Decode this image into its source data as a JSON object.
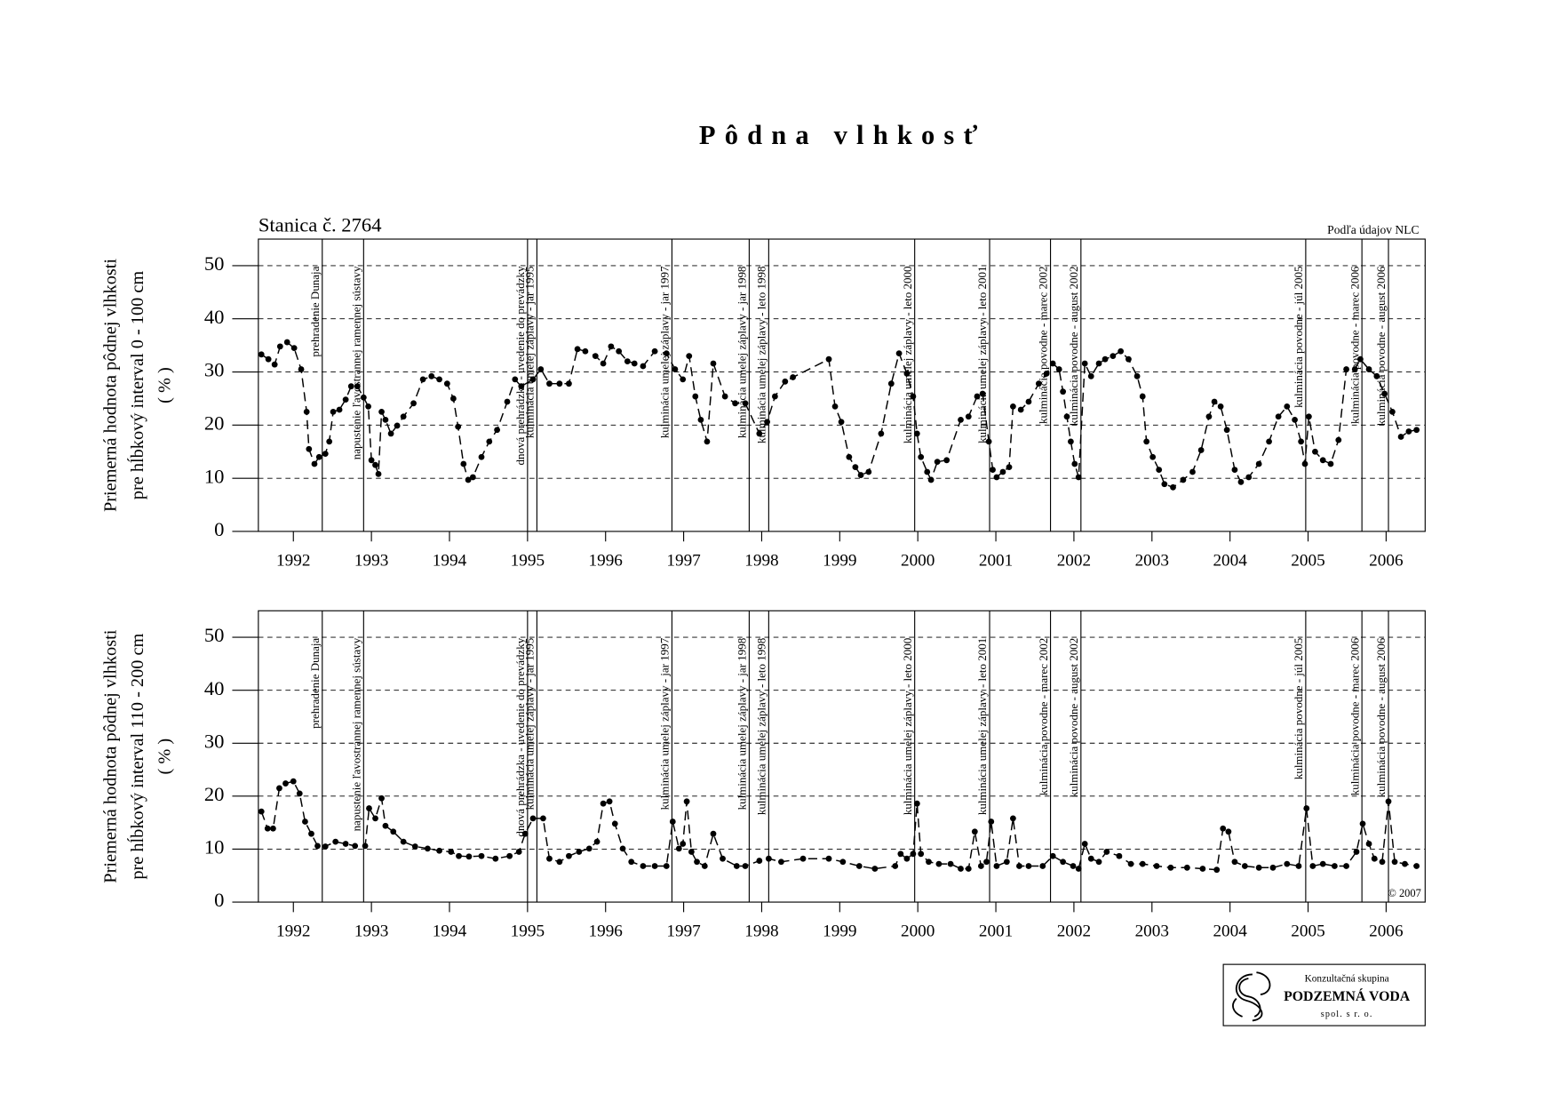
{
  "page": {
    "title": "Pôdna vlhkosť"
  },
  "logo": {
    "line1": "Konzultačná skupina",
    "line2": "PODZEMNÁ VODA",
    "line3": "spol. s r. o."
  },
  "chart_data": [
    {
      "type": "line",
      "subtitle": "Stanica č. 2764",
      "source": "Podľa údajov NLC",
      "ylabel": [
        "Priemerná hodnota pôdnej vlhkosti",
        "pre hĺbkový interval 0 - 100 cm",
        "( % )"
      ],
      "color": "#000000",
      "grid": true,
      "xlim": [
        1992,
        2007
      ],
      "xticks": [
        {
          "value": 1992.5,
          "label": "1992"
        },
        {
          "value": 1993.5,
          "label": "1993"
        },
        {
          "value": 1994.5,
          "label": "1994"
        },
        {
          "value": 1995.5,
          "label": "1995"
        },
        {
          "value": 1996.5,
          "label": "1996"
        },
        {
          "value": 1997.5,
          "label": "1997"
        },
        {
          "value": 1998.5,
          "label": "1998"
        },
        {
          "value": 1999.5,
          "label": "1999"
        },
        {
          "value": 2000.5,
          "label": "2000"
        },
        {
          "value": 2001.5,
          "label": "2001"
        },
        {
          "value": 2002.5,
          "label": "2002"
        },
        {
          "value": 2003.5,
          "label": "2003"
        },
        {
          "value": 2004.5,
          "label": "2004"
        },
        {
          "value": 2005.5,
          "label": "2005"
        },
        {
          "value": 2006.5,
          "label": "2006"
        }
      ],
      "ylim": [
        0,
        55
      ],
      "yticks": [
        0,
        10,
        20,
        30,
        40,
        50
      ],
      "events": [
        {
          "x": 1992.87,
          "label": "prehradenie Dunaja"
        },
        {
          "x": 1993.4,
          "label": "napustenie ľavostrannej ramennej sústavy"
        },
        {
          "x": 1995.5,
          "label": "dnová prehrádzka - uvedenie do prevádzky"
        },
        {
          "x": 1995.62,
          "label": "kulminácia umelej záplavy - jar 1995"
        },
        {
          "x": 1997.35,
          "label": "kulminácia umelej záplavy - jar 1997"
        },
        {
          "x": 1998.34,
          "label": "kulminácia umelej záplavy - jar 1998"
        },
        {
          "x": 1998.59,
          "label": "kulminácia umelej záplavy - leto 1998"
        },
        {
          "x": 2000.46,
          "label": "kulminácia umelej záplavy - leto 2000"
        },
        {
          "x": 2001.42,
          "label": "kulminácia umelej záplavy - leto 2001"
        },
        {
          "x": 2002.2,
          "label": "kulminácia povodne - marec 2002"
        },
        {
          "x": 2002.59,
          "label": "kulminácia povodne - august 2002"
        },
        {
          "x": 2005.47,
          "label": "kulminácia povodne - júl 2005"
        },
        {
          "x": 2006.19,
          "label": "kulminácia povodne - marec 2006"
        },
        {
          "x": 2006.53,
          "label": "kulminácia povodne - august 2006"
        }
      ],
      "x": [
        1992.09,
        1992.18,
        1992.26,
        1992.33,
        1992.42,
        1992.51,
        1992.6,
        1992.67,
        1992.7,
        1992.77,
        1992.83,
        1992.91,
        1992.96,
        1993.01,
        1993.09,
        1993.17,
        1993.24,
        1993.32,
        1993.4,
        1993.46,
        1993.5,
        1993.55,
        1993.59,
        1993.63,
        1993.68,
        1993.75,
        1993.83,
        1993.91,
        1994.04,
        1994.16,
        1994.27,
        1994.37,
        1994.47,
        1994.55,
        1994.61,
        1994.68,
        1994.74,
        1994.8,
        1994.91,
        1995.01,
        1995.11,
        1995.24,
        1995.34,
        1995.42,
        1995.57,
        1995.67,
        1995.78,
        1995.91,
        1996.03,
        1996.14,
        1996.24,
        1996.37,
        1996.47,
        1996.57,
        1996.67,
        1996.78,
        1996.87,
        1996.98,
        1997.13,
        1997.28,
        1997.39,
        1997.49,
        1997.57,
        1997.65,
        1997.72,
        1997.8,
        1997.88,
        1998.03,
        1998.16,
        1998.29,
        1998.47,
        1998.57,
        1998.67,
        1998.8,
        1998.9,
        1999.36,
        1999.44,
        1999.52,
        1999.62,
        1999.7,
        1999.77,
        1999.87,
        2000.03,
        2000.16,
        2000.26,
        2000.36,
        2000.44,
        2000.49,
        2000.54,
        2000.62,
        2000.67,
        2000.75,
        2000.87,
        2001.05,
        2001.15,
        2001.26,
        2001.33,
        2001.41,
        2001.46,
        2001.51,
        2001.59,
        2001.67,
        2001.72,
        2001.82,
        2001.92,
        2002.05,
        2002.15,
        2002.23,
        2002.31,
        2002.36,
        2002.41,
        2002.46,
        2002.51,
        2002.56,
        2002.64,
        2002.72,
        2002.82,
        2002.9,
        2003.0,
        2003.1,
        2003.2,
        2003.31,
        2003.38,
        2003.43,
        2003.51,
        2003.59,
        2003.66,
        2003.77,
        2003.9,
        2004.02,
        2004.13,
        2004.23,
        2004.3,
        2004.38,
        2004.46,
        2004.56,
        2004.64,
        2004.74,
        2004.87,
        2005.0,
        2005.12,
        2005.23,
        2005.33,
        2005.41,
        2005.46,
        2005.51,
        2005.59,
        2005.69,
        2005.79,
        2005.89,
        2005.99,
        2006.1,
        2006.17,
        2006.28,
        2006.38,
        2006.48,
        2006.58,
        2006.69,
        2006.79,
        2006.89
      ],
      "values": [
        33.3,
        32.4,
        31.4,
        34.8,
        35.6,
        34.5,
        30.5,
        22.5,
        15.5,
        12.7,
        14.0,
        14.6,
        16.9,
        22.5,
        22.9,
        24.8,
        27.3,
        27.3,
        25.2,
        23.5,
        13.4,
        12.5,
        10.8,
        22.5,
        21.0,
        18.4,
        19.9,
        21.6,
        24.1,
        28.6,
        29.2,
        28.6,
        27.8,
        25.0,
        19.7,
        12.7,
        9.7,
        10.2,
        14.0,
        16.9,
        19.1,
        24.4,
        28.6,
        27.3,
        28.6,
        30.5,
        27.8,
        27.8,
        27.8,
        34.3,
        33.9,
        33.0,
        31.6,
        34.8,
        33.9,
        32.0,
        31.6,
        31.1,
        33.9,
        33.5,
        30.5,
        28.6,
        33.0,
        25.4,
        21.0,
        16.9,
        31.6,
        25.4,
        24.1,
        24.1,
        18.4,
        20.6,
        25.4,
        28.2,
        29.0,
        32.4,
        23.5,
        20.6,
        14.0,
        12.1,
        10.6,
        11.2,
        18.4,
        27.8,
        33.5,
        29.7,
        25.4,
        18.4,
        14.0,
        11.2,
        9.7,
        13.1,
        13.4,
        21.0,
        21.6,
        25.4,
        25.9,
        16.9,
        11.6,
        10.2,
        11.2,
        12.1,
        23.5,
        22.9,
        24.4,
        27.8,
        29.7,
        31.6,
        30.5,
        26.3,
        21.6,
        16.9,
        12.7,
        10.2,
        31.6,
        29.2,
        31.6,
        32.4,
        33.0,
        33.9,
        32.4,
        29.2,
        25.4,
        16.9,
        14.0,
        11.6,
        8.9,
        8.3,
        9.7,
        11.2,
        15.3,
        21.6,
        24.4,
        23.5,
        19.1,
        11.6,
        9.3,
        10.2,
        12.7,
        16.9,
        21.6,
        23.5,
        21.0,
        16.9,
        12.7,
        21.6,
        15.0,
        13.4,
        12.7,
        17.2,
        30.5,
        30.5,
        32.4,
        30.5,
        29.2,
        25.9,
        22.5,
        17.8,
        18.8,
        19.1
      ]
    },
    {
      "type": "line",
      "annotation": "© 2007",
      "ylabel": [
        "Priemerná hodnota pôdnej vlhkosti",
        "pre hĺbkový interval 110 - 200 cm",
        "( % )"
      ],
      "color": "#000000",
      "grid": true,
      "xlim": [
        1992,
        2007
      ],
      "xticks": [
        {
          "value": 1992.5,
          "label": "1992"
        },
        {
          "value": 1993.5,
          "label": "1993"
        },
        {
          "value": 1994.5,
          "label": "1994"
        },
        {
          "value": 1995.5,
          "label": "1995"
        },
        {
          "value": 1996.5,
          "label": "1996"
        },
        {
          "value": 1997.5,
          "label": "1997"
        },
        {
          "value": 1998.5,
          "label": "1998"
        },
        {
          "value": 1999.5,
          "label": "1999"
        },
        {
          "value": 2000.5,
          "label": "2000"
        },
        {
          "value": 2001.5,
          "label": "2001"
        },
        {
          "value": 2002.5,
          "label": "2002"
        },
        {
          "value": 2003.5,
          "label": "2003"
        },
        {
          "value": 2004.5,
          "label": "2004"
        },
        {
          "value": 2005.5,
          "label": "2005"
        },
        {
          "value": 2006.5,
          "label": "2006"
        }
      ],
      "ylim": [
        0,
        55
      ],
      "yticks": [
        0,
        10,
        20,
        30,
        40,
        50
      ],
      "events": [
        {
          "x": 1992.87,
          "label": "prehradenie Dunaja"
        },
        {
          "x": 1993.4,
          "label": "napustenie ľavostrannej ramennej sústavy"
        },
        {
          "x": 1995.5,
          "label": "dnová prehrádzka - uvedenie do prevádzky"
        },
        {
          "x": 1995.62,
          "label": "kulminácia umelej záplavy - jar 1995"
        },
        {
          "x": 1997.35,
          "label": "kulminácia umelej záplavy - jar 1997"
        },
        {
          "x": 1998.34,
          "label": "kulminácia umelej záplavy - jar 1998"
        },
        {
          "x": 1998.59,
          "label": "kulminácia umelej záplavy - leto 1998"
        },
        {
          "x": 2000.46,
          "label": "kulminácia umelej záplavy - leto 2000"
        },
        {
          "x": 2001.42,
          "label": "kulminácia umelej záplavy - leto 2001"
        },
        {
          "x": 2002.2,
          "label": "kulminácia povodne - marec 2002"
        },
        {
          "x": 2002.59,
          "label": "kulminácia povodne - august 2002"
        },
        {
          "x": 2005.47,
          "label": "kulminácia povodne - júl 2005"
        },
        {
          "x": 2006.19,
          "label": "kulminácia povodne - marec 2006"
        },
        {
          "x": 2006.53,
          "label": "kulminácia povodne - august 2006"
        }
      ],
      "x": [
        1992.09,
        1992.17,
        1992.24,
        1992.32,
        1992.4,
        1992.5,
        1992.58,
        1992.65,
        1992.73,
        1992.81,
        1992.91,
        1993.04,
        1993.17,
        1993.29,
        1993.42,
        1993.47,
        1993.55,
        1993.63,
        1993.68,
        1993.78,
        1993.91,
        1994.06,
        1994.22,
        1994.37,
        1994.52,
        1994.62,
        1994.75,
        1994.91,
        1995.09,
        1995.27,
        1995.39,
        1995.47,
        1995.57,
        1995.7,
        1995.78,
        1995.91,
        1996.03,
        1996.16,
        1996.29,
        1996.39,
        1996.47,
        1996.55,
        1996.62,
        1996.72,
        1996.83,
        1996.98,
        1997.13,
        1997.28,
        1997.36,
        1997.44,
        1997.49,
        1997.54,
        1997.6,
        1997.67,
        1997.77,
        1997.88,
        1998.0,
        1998.18,
        1998.29,
        1998.47,
        1998.59,
        1998.75,
        1999.03,
        1999.36,
        1999.54,
        1999.75,
        1999.95,
        2000.21,
        2000.28,
        2000.36,
        2000.44,
        2000.49,
        2000.54,
        2000.64,
        2000.77,
        2000.92,
        2001.05,
        2001.15,
        2001.23,
        2001.31,
        2001.38,
        2001.44,
        2001.51,
        2001.64,
        2001.72,
        2001.8,
        2001.92,
        2002.1,
        2002.23,
        2002.36,
        2002.49,
        2002.56,
        2002.64,
        2002.72,
        2002.82,
        2002.92,
        2003.08,
        2003.23,
        2003.38,
        2003.56,
        2003.74,
        2003.95,
        2004.15,
        2004.33,
        2004.41,
        2004.48,
        2004.56,
        2004.69,
        2004.87,
        2005.05,
        2005.23,
        2005.38,
        2005.48,
        2005.56,
        2005.69,
        2005.84,
        2005.99,
        2006.12,
        2006.2,
        2006.28,
        2006.35,
        2006.45,
        2006.53,
        2006.61,
        2006.74,
        2006.89
      ],
      "values": [
        17.1,
        13.9,
        13.9,
        21.5,
        22.4,
        22.8,
        20.5,
        15.2,
        12.9,
        10.6,
        10.5,
        11.4,
        11.0,
        10.6,
        10.6,
        17.7,
        15.8,
        19.6,
        14.4,
        13.3,
        11.4,
        10.5,
        10.1,
        9.7,
        9.5,
        8.7,
        8.6,
        8.7,
        8.2,
        8.7,
        9.5,
        12.9,
        15.8,
        15.8,
        8.2,
        7.6,
        8.7,
        9.5,
        10.1,
        11.4,
        18.6,
        19.0,
        14.8,
        10.1,
        7.6,
        6.8,
        6.8,
        6.8,
        15.2,
        10.1,
        11.0,
        19.0,
        9.5,
        7.6,
        6.8,
        12.9,
        8.2,
        6.8,
        6.8,
        7.8,
        8.2,
        7.6,
        8.2,
        8.2,
        7.6,
        6.8,
        6.3,
        6.8,
        9.1,
        8.2,
        9.1,
        18.6,
        9.1,
        7.6,
        7.2,
        7.2,
        6.3,
        6.3,
        13.3,
        6.8,
        7.6,
        15.2,
        6.8,
        7.6,
        15.8,
        6.8,
        6.8,
        6.8,
        8.7,
        7.6,
        6.8,
        6.3,
        11.0,
        8.2,
        7.6,
        9.5,
        8.7,
        7.2,
        7.2,
        6.8,
        6.5,
        6.5,
        6.3,
        6.1,
        13.9,
        13.3,
        7.6,
        6.8,
        6.5,
        6.5,
        7.2,
        6.8,
        17.7,
        6.8,
        7.2,
        6.8,
        6.8,
        9.5,
        14.8,
        11.0,
        8.2,
        7.6,
        19.0,
        7.6,
        7.2,
        6.8
      ]
    }
  ]
}
